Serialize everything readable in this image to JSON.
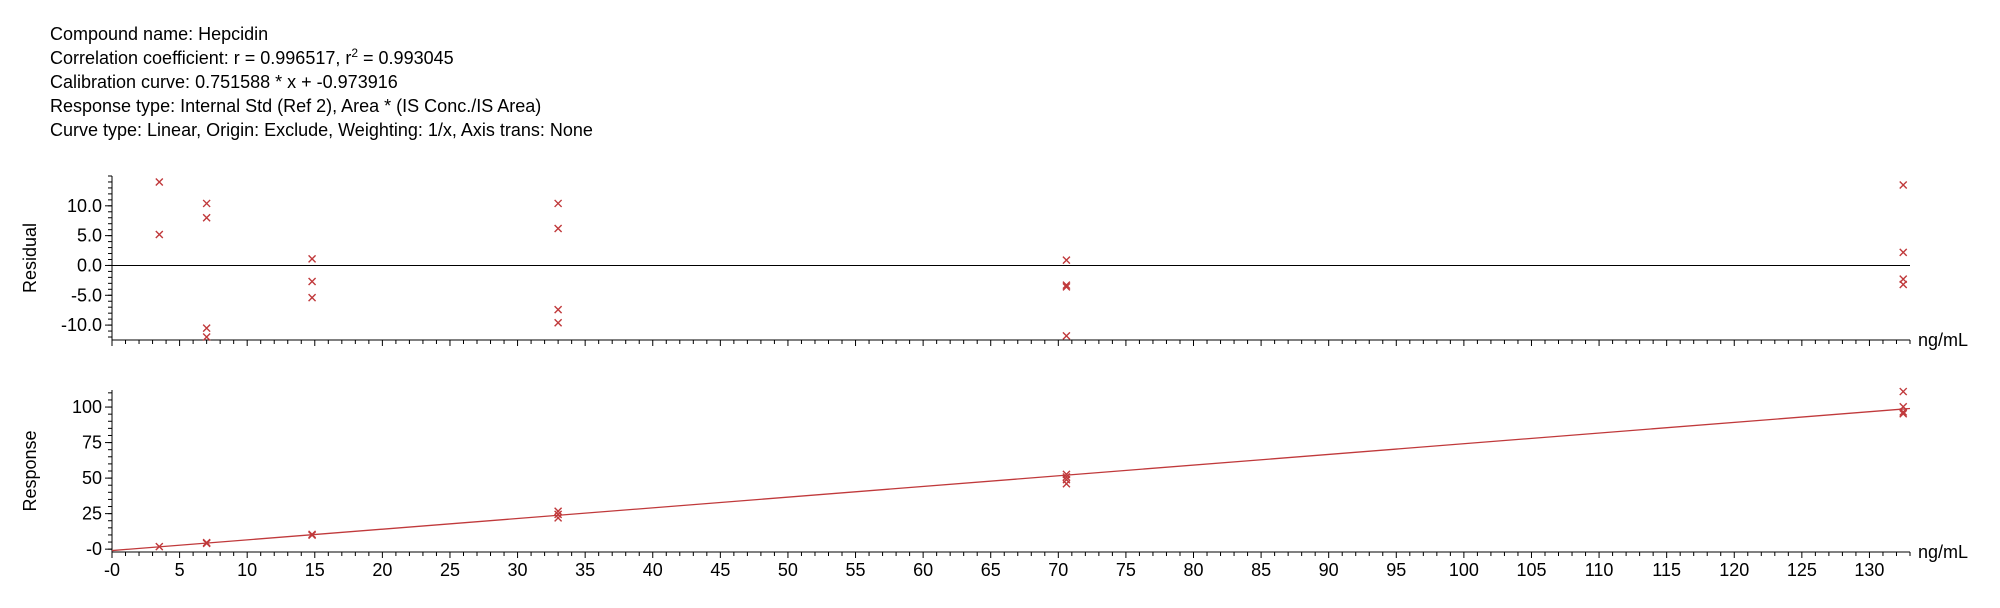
{
  "header": {
    "compound": "Compound name: Hepcidin",
    "correlation_prefix": "Correlation coefficient: r = 0.996517, r",
    "correlation_sup": "2",
    "correlation_suffix": " = 0.993045",
    "calibration": "Calibration curve: 0.751588 * x + -0.973916",
    "response_type": "Response type: Internal Std (Ref 2), Area * (IS Conc./IS Area)",
    "curve_type": "Curve type: Linear, Origin: Exclude, Weighting: 1/x, Axis trans: None"
  },
  "colors": {
    "series": "#c0393b",
    "axis": "#000000"
  },
  "chart_data": [
    {
      "type": "scatter",
      "title": "",
      "xlabel": "ng/mL",
      "ylabel": "Residual",
      "xlim": [
        0,
        133
      ],
      "ylim": [
        -12.5,
        15
      ],
      "yticks": [
        10,
        5,
        0,
        -5,
        -10
      ],
      "ytick_labels": [
        "10.0",
        "5.0",
        "0.0",
        "-5.0",
        "-10.0"
      ],
      "reference_line_y": 0,
      "points": [
        [
          3.5,
          14.0
        ],
        [
          3.5,
          5.2
        ],
        [
          7.0,
          10.4
        ],
        [
          7.0,
          8.0
        ],
        [
          7.0,
          -10.5
        ],
        [
          7.0,
          -12.0
        ],
        [
          14.8,
          1.1
        ],
        [
          14.8,
          -2.7
        ],
        [
          14.8,
          -5.4
        ],
        [
          33.0,
          10.4
        ],
        [
          33.0,
          6.2
        ],
        [
          33.0,
          -7.4
        ],
        [
          33.0,
          -9.6
        ],
        [
          70.6,
          0.9
        ],
        [
          70.6,
          -3.3
        ],
        [
          70.6,
          -3.6
        ],
        [
          70.6,
          -11.8
        ],
        [
          132.5,
          13.5
        ],
        [
          132.5,
          2.2
        ],
        [
          132.5,
          -2.3
        ],
        [
          132.5,
          -3.2
        ]
      ]
    },
    {
      "type": "scatter",
      "title": "",
      "xlabel": "ng/mL",
      "ylabel": "Response",
      "xlim": [
        0,
        133
      ],
      "ylim": [
        -2,
        112
      ],
      "yticks": [
        100,
        75,
        50,
        25,
        0
      ],
      "ytick_labels": [
        "100",
        "75",
        "50",
        "25",
        "-0"
      ],
      "fit_line": {
        "slope": 0.751588,
        "intercept": -0.973916
      },
      "points": [
        [
          3.5,
          1.8
        ],
        [
          7.0,
          4.6
        ],
        [
          7.0,
          4.1
        ],
        [
          14.8,
          10.4
        ],
        [
          14.8,
          9.9
        ],
        [
          33.0,
          26.7
        ],
        [
          33.0,
          24.5
        ],
        [
          33.0,
          22.0
        ],
        [
          70.6,
          52.6
        ],
        [
          70.6,
          50.8
        ],
        [
          70.6,
          48.9
        ],
        [
          70.6,
          46.0
        ],
        [
          132.5,
          110.9
        ],
        [
          132.5,
          100.2
        ],
        [
          132.5,
          96.5
        ],
        [
          132.5,
          95.3
        ]
      ]
    }
  ],
  "x_axis": {
    "ticks": [
      0,
      5,
      10,
      15,
      20,
      25,
      30,
      35,
      40,
      45,
      50,
      55,
      60,
      65,
      70,
      75,
      80,
      85,
      90,
      95,
      100,
      105,
      110,
      115,
      120,
      125,
      130
    ],
    "tick_labels": [
      "-0",
      "5",
      "10",
      "15",
      "20",
      "25",
      "30",
      "35",
      "40",
      "45",
      "50",
      "55",
      "60",
      "65",
      "70",
      "75",
      "80",
      "85",
      "90",
      "95",
      "100",
      "105",
      "110",
      "115",
      "120",
      "125",
      "130"
    ]
  }
}
